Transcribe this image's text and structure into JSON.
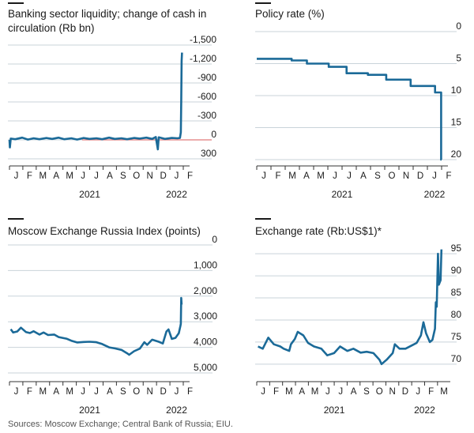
{
  "footer": {
    "source": "Sources: Moscow Exchange; Central Bank of Russia; EIU."
  },
  "palette": {
    "line": "#1b6a98",
    "grid": "#c9d3da",
    "zero": "#e07a7a",
    "axis": "#333333",
    "text": "#1a1a1a"
  },
  "x_axis": {
    "months": [
      "J",
      "F",
      "M",
      "A",
      "M",
      "J",
      "J",
      "A",
      "S",
      "O",
      "N",
      "D",
      "J",
      "F"
    ],
    "years": [
      "2021",
      "2022"
    ]
  },
  "x_axis_exchange": {
    "months": [
      "J",
      "F",
      "M",
      "A",
      "M",
      "J",
      "J",
      "A",
      "S",
      "O",
      "N",
      "D",
      "J",
      "F",
      "M"
    ],
    "years": [
      "2021",
      "2022"
    ]
  },
  "chart_data": [
    {
      "type": "line",
      "title_line1": "Banking sector liquidity; change of cash in",
      "title_line2": "circulation (Rb bn)",
      "ylim": [
        -1500,
        300
      ],
      "y_ticks": [
        "300",
        "0",
        "-300",
        "-600",
        "-900",
        "-1,200",
        "-1,500"
      ],
      "reference_line": 0,
      "x_range": [
        "2021-01-01",
        "2022-03-01"
      ],
      "series": [
        {
          "points": [
            [
              "2021-01-01",
              0
            ],
            [
              "2021-01-02",
              120
            ],
            [
              "2021-01-04",
              -20
            ],
            [
              "2021-01-15",
              -10
            ],
            [
              "2021-02-01",
              -35
            ],
            [
              "2021-02-15",
              -5
            ],
            [
              "2021-03-01",
              -25
            ],
            [
              "2021-03-15",
              -10
            ],
            [
              "2021-04-01",
              -30
            ],
            [
              "2021-04-15",
              -15
            ],
            [
              "2021-05-01",
              -35
            ],
            [
              "2021-05-15",
              -10
            ],
            [
              "2021-06-01",
              -25
            ],
            [
              "2021-06-15",
              -5
            ],
            [
              "2021-07-01",
              -30
            ],
            [
              "2021-07-15",
              -15
            ],
            [
              "2021-08-01",
              -25
            ],
            [
              "2021-08-15",
              -10
            ],
            [
              "2021-09-01",
              -35
            ],
            [
              "2021-09-15",
              -15
            ],
            [
              "2021-10-01",
              -25
            ],
            [
              "2021-10-15",
              -10
            ],
            [
              "2021-11-01",
              -30
            ],
            [
              "2021-11-15",
              -20
            ],
            [
              "2021-12-01",
              -35
            ],
            [
              "2021-12-15",
              -15
            ],
            [
              "2021-12-24",
              -45
            ],
            [
              "2021-12-29",
              150
            ],
            [
              "2021-12-31",
              -40
            ],
            [
              "2022-01-15",
              -15
            ],
            [
              "2022-02-01",
              -30
            ],
            [
              "2022-02-15",
              -25
            ],
            [
              "2022-02-21",
              -30
            ],
            [
              "2022-02-23",
              -120
            ],
            [
              "2022-02-24",
              -600
            ],
            [
              "2022-02-25",
              -1250
            ],
            [
              "2022-02-26",
              -1380
            ]
          ]
        }
      ]
    },
    {
      "type": "line",
      "title": "Policy rate (%)",
      "ylim": [
        0,
        20
      ],
      "y_ticks": [
        "20",
        "15",
        "10",
        "5",
        "0"
      ],
      "x_range": [
        "2021-01-01",
        "2022-03-01"
      ],
      "series": [
        {
          "step": true,
          "points": [
            [
              "2021-01-01",
              4.25
            ],
            [
              "2021-03-22",
              4.5
            ],
            [
              "2021-04-26",
              5.0
            ],
            [
              "2021-06-15",
              5.5
            ],
            [
              "2021-07-26",
              6.5
            ],
            [
              "2021-09-13",
              6.75
            ],
            [
              "2021-10-25",
              7.5
            ],
            [
              "2021-12-20",
              8.5
            ],
            [
              "2022-02-14",
              9.5
            ],
            [
              "2022-02-28",
              20
            ],
            [
              "2022-03-01",
              20
            ]
          ]
        }
      ]
    },
    {
      "type": "line",
      "title": "Moscow Exchange Russia Index (points)",
      "ylim": [
        0,
        5000
      ],
      "y_ticks": [
        "5,000",
        "4,000",
        "3,000",
        "2,000",
        "1,000",
        "0"
      ],
      "x_range": [
        "2021-01-01",
        "2022-03-01"
      ],
      "series": [
        {
          "points": [
            [
              "2021-01-04",
              3290
            ],
            [
              "2021-01-10",
              3420
            ],
            [
              "2021-01-20",
              3380
            ],
            [
              "2021-01-29",
              3230
            ],
            [
              "2021-02-10",
              3400
            ],
            [
              "2021-02-20",
              3440
            ],
            [
              "2021-03-01",
              3370
            ],
            [
              "2021-03-15",
              3500
            ],
            [
              "2021-03-25",
              3420
            ],
            [
              "2021-04-05",
              3520
            ],
            [
              "2021-04-20",
              3500
            ],
            [
              "2021-05-01",
              3600
            ],
            [
              "2021-05-20",
              3660
            ],
            [
              "2021-06-01",
              3740
            ],
            [
              "2021-06-15",
              3810
            ],
            [
              "2021-07-01",
              3790
            ],
            [
              "2021-07-15",
              3780
            ],
            [
              "2021-08-01",
              3800
            ],
            [
              "2021-08-15",
              3870
            ],
            [
              "2021-09-01",
              4000
            ],
            [
              "2021-09-15",
              4040
            ],
            [
              "2021-10-01",
              4100
            ],
            [
              "2021-10-15",
              4230
            ],
            [
              "2021-10-20",
              4290
            ],
            [
              "2021-11-01",
              4150
            ],
            [
              "2021-11-15",
              4050
            ],
            [
              "2021-11-26",
              3800
            ],
            [
              "2021-12-03",
              3900
            ],
            [
              "2021-12-15",
              3700
            ],
            [
              "2021-12-31",
              3780
            ],
            [
              "2022-01-10",
              3850
            ],
            [
              "2022-01-19",
              3380
            ],
            [
              "2022-01-24",
              3300
            ],
            [
              "2022-02-01",
              3670
            ],
            [
              "2022-02-10",
              3630
            ],
            [
              "2022-02-18",
              3450
            ],
            [
              "2022-02-22",
              3160
            ],
            [
              "2022-02-23",
              3080
            ],
            [
              "2022-02-24",
              2070
            ],
            [
              "2022-02-25",
              2330
            ]
          ]
        }
      ]
    },
    {
      "type": "line",
      "title": "Exchange rate (Rb:US$1)*",
      "ylim": [
        97,
        68
      ],
      "y_inverted": true,
      "y_ticks": [
        "70",
        "75",
        "80",
        "85",
        "90",
        "95"
      ],
      "x_range": [
        "2021-01-01",
        "2022-03-15"
      ],
      "series": [
        {
          "points": [
            [
              "2021-01-04",
              74.0
            ],
            [
              "2021-01-15",
              73.5
            ],
            [
              "2021-01-28",
              76.0
            ],
            [
              "2021-02-10",
              74.5
            ],
            [
              "2021-02-25",
              74.0
            ],
            [
              "2021-03-05",
              73.5
            ],
            [
              "2021-03-18",
              73.0
            ],
            [
              "2021-03-22",
              74.5
            ],
            [
              "2021-03-31",
              75.7
            ],
            [
              "2021-04-07",
              77.3
            ],
            [
              "2021-04-20",
              76.5
            ],
            [
              "2021-05-01",
              74.8
            ],
            [
              "2021-05-15",
              74.0
            ],
            [
              "2021-06-01",
              73.5
            ],
            [
              "2021-06-15",
              72.0
            ],
            [
              "2021-07-01",
              72.5
            ],
            [
              "2021-07-15",
              74.0
            ],
            [
              "2021-08-01",
              73.0
            ],
            [
              "2021-08-15",
              73.5
            ],
            [
              "2021-09-01",
              72.6
            ],
            [
              "2021-09-15",
              72.8
            ],
            [
              "2021-10-01",
              72.5
            ],
            [
              "2021-10-15",
              71.0
            ],
            [
              "2021-10-20",
              70.0
            ],
            [
              "2021-11-01",
              71.0
            ],
            [
              "2021-11-15",
              72.5
            ],
            [
              "2021-11-20",
              74.5
            ],
            [
              "2021-12-01",
              73.5
            ],
            [
              "2021-12-15",
              73.5
            ],
            [
              "2021-12-31",
              74.3
            ],
            [
              "2022-01-10",
              74.8
            ],
            [
              "2022-01-20",
              76.5
            ],
            [
              "2022-01-26",
              79.5
            ],
            [
              "2022-02-01",
              77.0
            ],
            [
              "2022-02-10",
              75.0
            ],
            [
              "2022-02-16",
              75.5
            ],
            [
              "2022-02-22",
              78.0
            ],
            [
              "2022-02-24",
              84.0
            ],
            [
              "2022-02-26",
              83.0
            ],
            [
              "2022-03-01",
              95.0
            ],
            [
              "2022-03-03",
              88.0
            ],
            [
              "2022-03-07",
              89.0
            ],
            [
              "2022-03-09",
              96.0
            ]
          ]
        }
      ]
    }
  ]
}
